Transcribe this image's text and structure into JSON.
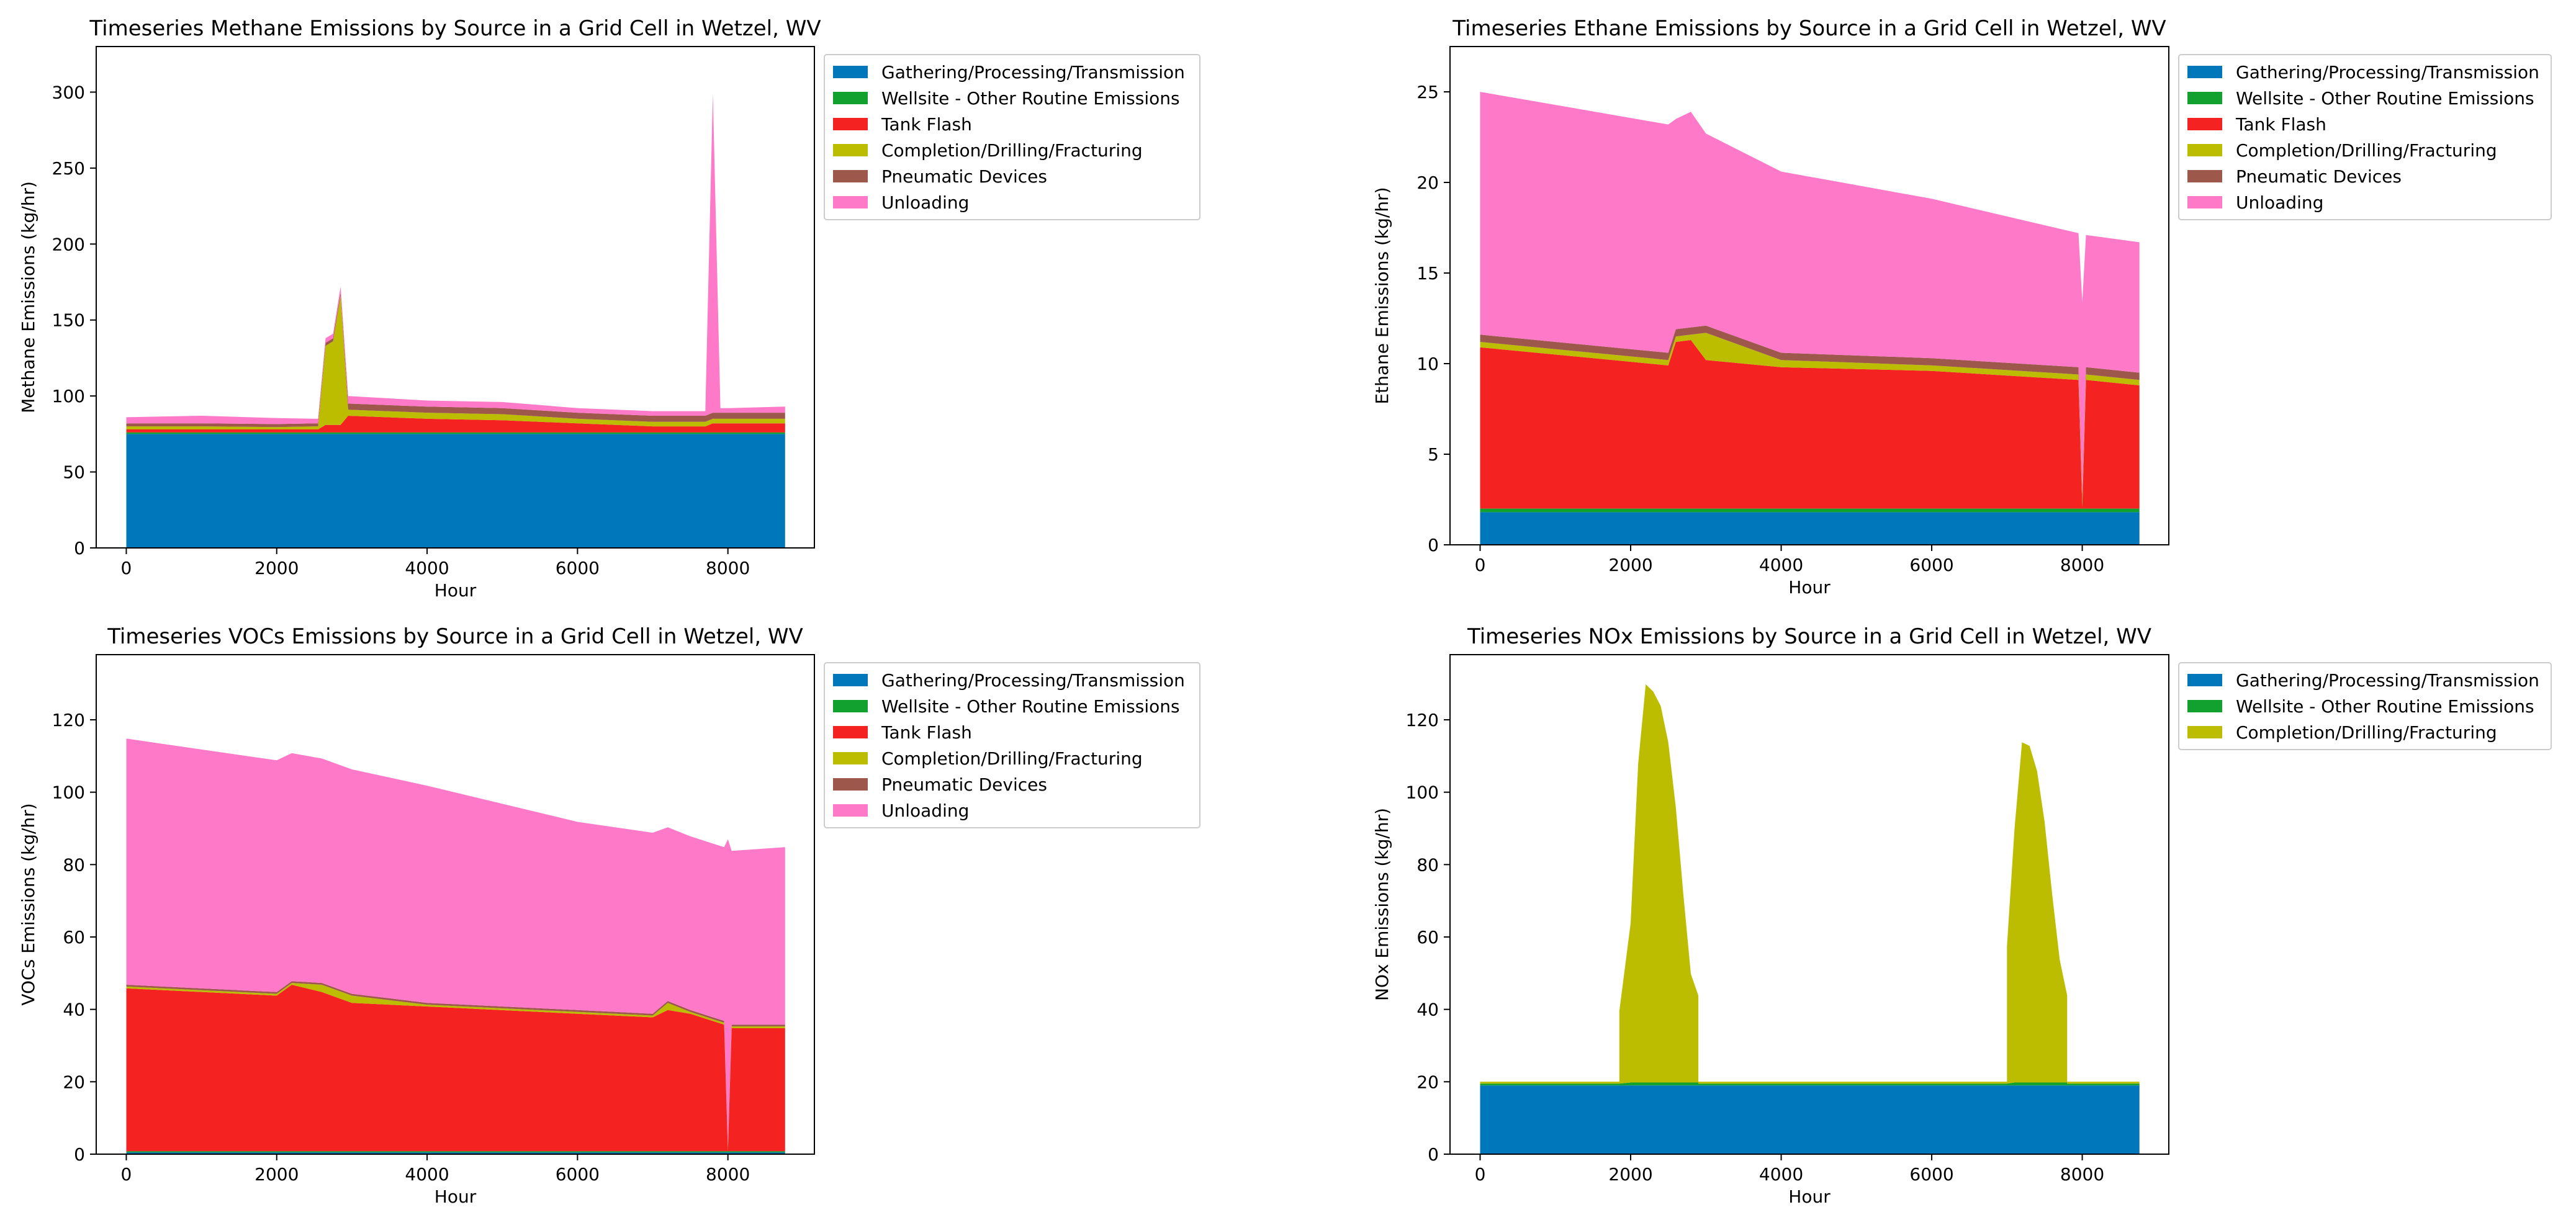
{
  "colors": {
    "Gathering/Processing/Transmission": "#0077bb",
    "Wellsite - Other Routine Emissions": "#12a02e",
    "Tank Flash": "#f52222",
    "Completion/Drilling/Fracturing": "#bcbd00",
    "Pneumatic Devices": "#9e574b",
    "Unloading": "#ff79c9"
  },
  "chart_data": [
    {
      "type": "area",
      "title": "Timeseries Methane Emissions by Source in a Grid Cell in Wetzel, WV",
      "xlabel": "Hour",
      "ylabel": "Methane Emissions (kg/hr)",
      "xlim": [
        -400,
        9150
      ],
      "ylim": [
        0,
        330
      ],
      "xticks": [
        0,
        2000,
        4000,
        6000,
        8000
      ],
      "yticks": [
        0,
        50,
        100,
        150,
        200,
        250,
        300
      ],
      "legend": "outside-upper-right",
      "stacked": true,
      "x": [
        0,
        1000,
        2000,
        2550,
        2650,
        2750,
        2850,
        2950,
        4000,
        5000,
        6000,
        7000,
        7700,
        7800,
        7900,
        8000,
        8760
      ],
      "series": [
        {
          "name": "Gathering/Processing/Transmission",
          "values": [
            75,
            75,
            75,
            75,
            75,
            75,
            75,
            75,
            75,
            75,
            75,
            75,
            75,
            75,
            75,
            75,
            75
          ]
        },
        {
          "name": "Wellsite - Other Routine Emissions",
          "values": [
            1,
            1,
            1,
            1,
            1,
            1,
            1,
            1,
            1,
            1,
            1,
            1,
            1,
            1,
            1,
            1,
            1
          ]
        },
        {
          "name": "Tank Flash",
          "values": [
            2,
            2,
            2,
            2,
            5,
            5,
            5,
            11,
            9,
            8,
            6,
            4,
            4,
            6,
            6,
            6,
            6
          ]
        },
        {
          "name": "Completion/Drilling/Fracturing",
          "values": [
            2,
            2,
            1.5,
            2,
            52,
            55,
            85,
            4,
            4,
            4,
            3,
            3,
            3,
            3,
            3,
            3,
            3
          ]
        },
        {
          "name": "Pneumatic Devices",
          "values": [
            2,
            2,
            2,
            2,
            2,
            2,
            2,
            4,
            4,
            4,
            4,
            4,
            4,
            4,
            4,
            4,
            4
          ]
        },
        {
          "name": "Unloading",
          "values": [
            4,
            5,
            4,
            3,
            3,
            3,
            4,
            5,
            4,
            4,
            3,
            3,
            3,
            210,
            3,
            3,
            4
          ]
        }
      ]
    },
    {
      "type": "area",
      "title": "Timeseries Ethane Emissions by Source in a Grid Cell in Wetzel, WV",
      "xlabel": "Hour",
      "ylabel": "Ethane Emissions (kg/hr)",
      "xlim": [
        -400,
        9150
      ],
      "ylim": [
        0,
        27.5
      ],
      "xticks": [
        0,
        2000,
        4000,
        6000,
        8000
      ],
      "yticks": [
        0,
        5,
        10,
        15,
        20,
        25
      ],
      "legend": "outside-upper-right",
      "stacked": true,
      "x": [
        0,
        2500,
        2600,
        2800,
        3000,
        4000,
        6000,
        7950,
        8000,
        8050,
        8760
      ],
      "series": [
        {
          "name": "Gathering/Processing/Transmission",
          "values": [
            1.8,
            1.8,
            1.8,
            1.8,
            1.8,
            1.8,
            1.8,
            1.8,
            1.8,
            1.8,
            1.8
          ]
        },
        {
          "name": "Wellsite - Other Routine Emissions",
          "values": [
            0.2,
            0.2,
            0.2,
            0.2,
            0.2,
            0.2,
            0.2,
            0.2,
            0.2,
            0.2,
            0.2
          ]
        },
        {
          "name": "Tank Flash",
          "values": [
            8.9,
            7.9,
            9.2,
            9.3,
            8.2,
            7.8,
            7.6,
            7.1,
            0.1,
            7.1,
            6.8
          ]
        },
        {
          "name": "Completion/Drilling/Fracturing",
          "values": [
            0.3,
            0.3,
            0.3,
            0.3,
            1.5,
            0.4,
            0.3,
            0.3,
            0.3,
            0.3,
            0.3
          ]
        },
        {
          "name": "Pneumatic Devices",
          "values": [
            0.4,
            0.4,
            0.4,
            0.4,
            0.4,
            0.4,
            0.4,
            0.4,
            0.4,
            0.4,
            0.4
          ]
        },
        {
          "name": "Unloading",
          "values": [
            13.4,
            12.6,
            11.6,
            11.9,
            10.6,
            10,
            8.8,
            7.4,
            10.6,
            7.3,
            7.2
          ]
        }
      ]
    },
    {
      "type": "area",
      "title": "Timeseries VOCs Emissions by Source in a Grid Cell in Wetzel, WV",
      "xlabel": "Hour",
      "ylabel": "VOCs Emissions (kg/hr)",
      "xlim": [
        -400,
        9150
      ],
      "ylim": [
        0,
        138
      ],
      "xticks": [
        0,
        2000,
        4000,
        6000,
        8000
      ],
      "yticks": [
        0,
        20,
        40,
        60,
        80,
        100,
        120
      ],
      "legend": "outside-upper-right",
      "stacked": true,
      "x": [
        0,
        2000,
        2200,
        2600,
        3000,
        4000,
        6000,
        7000,
        7200,
        7500,
        7950,
        8000,
        8050,
        8760
      ],
      "series": [
        {
          "name": "Gathering/Processing/Transmission",
          "values": [
            0.5,
            0.5,
            0.5,
            0.5,
            0.5,
            0.5,
            0.5,
            0.5,
            0.5,
            0.5,
            0.5,
            0.5,
            0.5,
            0.5
          ]
        },
        {
          "name": "Wellsite - Other Routine Emissions",
          "values": [
            0.3,
            0.3,
            0.3,
            0.3,
            0.3,
            0.3,
            0.3,
            0.3,
            0.3,
            0.3,
            0.3,
            0.3,
            0.3,
            0.3
          ]
        },
        {
          "name": "Tank Flash",
          "values": [
            45,
            43,
            46,
            44,
            41,
            40,
            38,
            37,
            39,
            38,
            35,
            0.2,
            34,
            34
          ]
        },
        {
          "name": "Completion/Drilling/Fracturing",
          "values": [
            0.5,
            0.5,
            0.5,
            2,
            2,
            0.5,
            0.5,
            0.5,
            2,
            0.5,
            0.5,
            0.5,
            0.5,
            0.5
          ]
        },
        {
          "name": "Pneumatic Devices",
          "values": [
            0.5,
            0.5,
            0.5,
            0.5,
            0.5,
            0.5,
            0.5,
            0.5,
            0.5,
            0.5,
            0.5,
            0.5,
            0.5,
            0.5
          ]
        },
        {
          "name": "Unloading",
          "values": [
            68,
            64,
            63,
            62,
            62,
            60,
            52,
            50,
            48,
            48,
            48,
            85,
            48,
            49
          ]
        }
      ]
    },
    {
      "type": "area",
      "title": "Timeseries NOx Emissions by Source in a Grid Cell in Wetzel, WV",
      "xlabel": "Hour",
      "ylabel": "NOx Emissions (kg/hr)",
      "xlim": [
        -400,
        9150
      ],
      "ylim": [
        0,
        138
      ],
      "xticks": [
        0,
        2000,
        4000,
        6000,
        8000
      ],
      "yticks": [
        0,
        20,
        40,
        60,
        80,
        100,
        120
      ],
      "legend": "outside-upper-right",
      "stacked": true,
      "x": [
        0,
        1850,
        1850,
        2000,
        2100,
        2200,
        2300,
        2400,
        2500,
        2600,
        2700,
        2800,
        2900,
        2900,
        7000,
        7000,
        7100,
        7200,
        7300,
        7400,
        7500,
        7600,
        7700,
        7800,
        7800,
        8760
      ],
      "series": [
        {
          "name": "Gathering/Processing/Transmission",
          "values": [
            19,
            19,
            19,
            19,
            19,
            19,
            19,
            19,
            19,
            19,
            19,
            19,
            19,
            19,
            19,
            19,
            19,
            19,
            19,
            19,
            19,
            19,
            19,
            19,
            19,
            19
          ]
        },
        {
          "name": "Wellsite - Other Routine Emissions",
          "values": [
            0.5,
            0.5,
            0.5,
            0.8,
            0.8,
            0.8,
            0.8,
            0.8,
            0.8,
            0.8,
            0.8,
            0.8,
            0.8,
            0.5,
            0.5,
            0.5,
            0.8,
            0.8,
            0.8,
            0.8,
            0.8,
            0.8,
            0.8,
            0.8,
            0.5,
            0.5
          ]
        },
        {
          "name": "Completion/Drilling/Fracturing",
          "values": [
            0.5,
            0.5,
            20,
            44,
            88,
            110,
            108,
            104,
            94,
            76,
            52,
            30,
            24,
            0.5,
            0.5,
            38,
            70,
            94,
            93,
            86,
            72,
            52,
            34,
            24,
            0.5,
            0.5
          ]
        }
      ]
    }
  ]
}
